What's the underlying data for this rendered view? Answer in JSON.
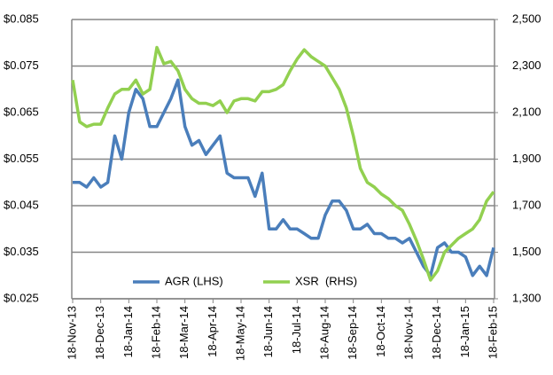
{
  "chart_data": {
    "type": "line",
    "categories": [
      "18-Nov-13",
      null,
      null,
      null,
      "18-Dec-13",
      null,
      null,
      null,
      "18-Jan-14",
      null,
      null,
      null,
      "18-Feb-14",
      null,
      null,
      null,
      "18-Mar-14",
      null,
      null,
      null,
      "18-Apr-14",
      null,
      null,
      null,
      "18-May-14",
      null,
      null,
      null,
      "18-Jun-14",
      null,
      null,
      null,
      "18-Jul-14",
      null,
      null,
      null,
      "18-Aug-14",
      null,
      null,
      null,
      "18-Sep-14",
      null,
      null,
      null,
      "18-Oct-14",
      null,
      null,
      null,
      "18-Nov-14",
      null,
      null,
      null,
      "18-Dec-14",
      null,
      null,
      null,
      "18-Jan-15",
      null,
      null,
      null,
      "18-Feb-15"
    ],
    "series": [
      {
        "name": "AGR (LHS)",
        "color": "#4a7ebb",
        "axis": "y",
        "values": [
          0.05,
          0.05,
          0.049,
          0.051,
          0.049,
          0.05,
          0.06,
          0.055,
          0.065,
          0.07,
          0.068,
          0.062,
          0.062,
          0.065,
          0.068,
          0.072,
          0.062,
          0.058,
          0.059,
          0.056,
          0.058,
          0.06,
          0.052,
          0.051,
          0.051,
          0.051,
          0.047,
          0.052,
          0.04,
          0.04,
          0.042,
          0.04,
          0.04,
          0.039,
          0.038,
          0.038,
          0.043,
          0.046,
          0.046,
          0.044,
          0.04,
          0.04,
          0.041,
          0.039,
          0.039,
          0.038,
          0.038,
          0.037,
          0.038,
          0.035,
          0.032,
          0.03,
          0.036,
          0.037,
          0.035,
          0.035,
          0.034,
          0.03,
          0.032,
          0.03,
          0.036
        ]
      },
      {
        "name": "XSR  (RHS)",
        "color": "#92d050",
        "axis": "y2",
        "values": [
          2240,
          2060,
          2040,
          2050,
          2050,
          2120,
          2180,
          2200,
          2200,
          2240,
          2180,
          2200,
          2380,
          2310,
          2320,
          2280,
          2200,
          2160,
          2140,
          2140,
          2130,
          2150,
          2100,
          2150,
          2160,
          2160,
          2150,
          2190,
          2190,
          2200,
          2220,
          2280,
          2330,
          2370,
          2340,
          2320,
          2300,
          2250,
          2200,
          2120,
          2000,
          1860,
          1800,
          1780,
          1750,
          1730,
          1700,
          1680,
          1620,
          1550,
          1470,
          1380,
          1420,
          1500,
          1530,
          1560,
          1580,
          1600,
          1640,
          1720,
          1760
        ]
      }
    ],
    "ylim": [
      0.025,
      0.085
    ],
    "yticks": [
      {
        "value": 0.025,
        "label": "$0.025"
      },
      {
        "value": 0.035,
        "label": "$0.035"
      },
      {
        "value": 0.045,
        "label": "$0.045"
      },
      {
        "value": 0.055,
        "label": "$0.055"
      },
      {
        "value": 0.065,
        "label": "$0.065"
      },
      {
        "value": 0.075,
        "label": "$0.075"
      },
      {
        "value": 0.085,
        "label": "$0.085"
      }
    ],
    "y2lim": [
      1300,
      2500
    ],
    "y2ticks": [
      {
        "value": 1300,
        "label": "1,300"
      },
      {
        "value": 1500,
        "label": "1,500"
      },
      {
        "value": 1700,
        "label": "1,700"
      },
      {
        "value": 1900,
        "label": "1,900"
      },
      {
        "value": 2100,
        "label": "2,100"
      },
      {
        "value": 2300,
        "label": "2,300"
      },
      {
        "value": 2500,
        "label": "2,500"
      }
    ],
    "grid": true,
    "legend": "bottom"
  }
}
